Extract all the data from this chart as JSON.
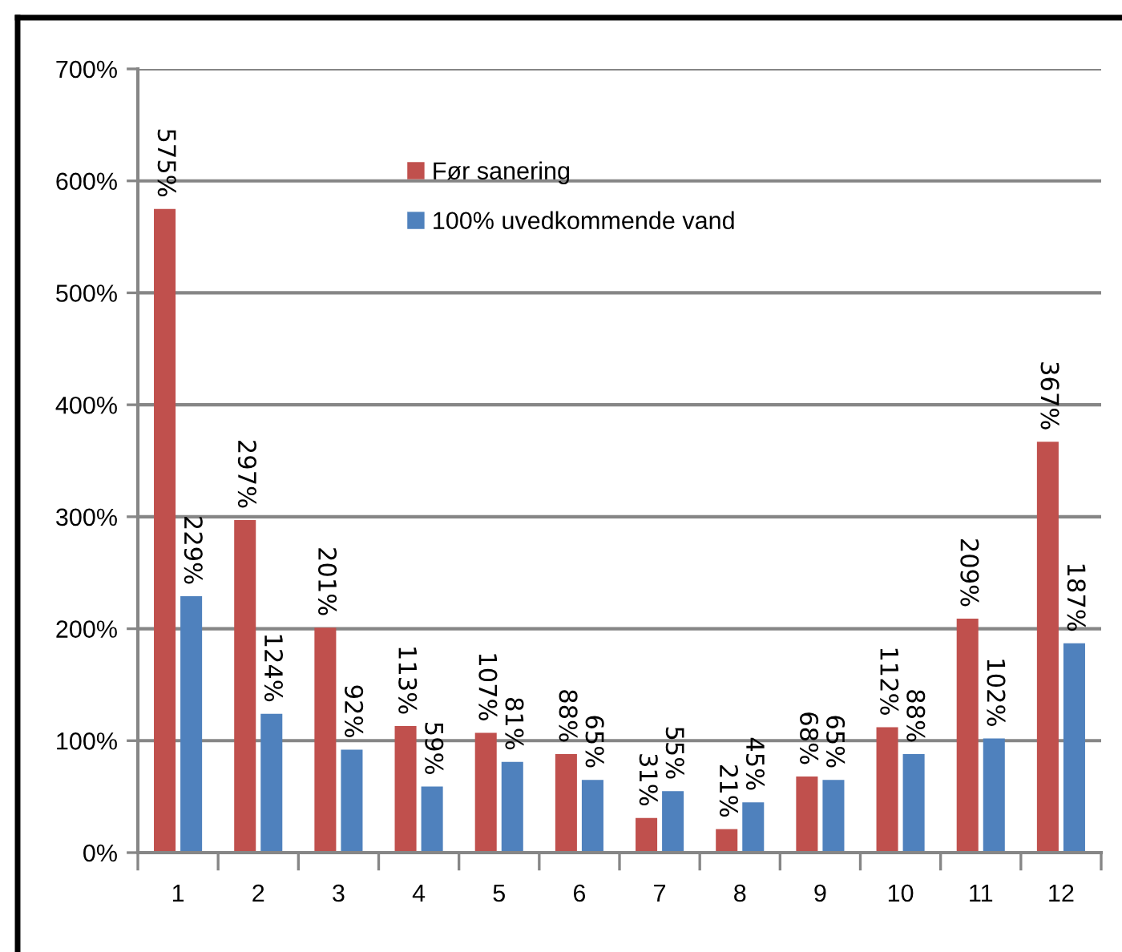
{
  "chart_data": {
    "type": "bar",
    "categories": [
      "1",
      "2",
      "3",
      "4",
      "5",
      "6",
      "7",
      "8",
      "9",
      "10",
      "11",
      "12"
    ],
    "series": [
      {
        "name": "Før sanering",
        "color": "#c0504d",
        "values": [
          575,
          297,
          201,
          113,
          107,
          88,
          31,
          21,
          68,
          112,
          209,
          367
        ],
        "value_labels": [
          "575%",
          "297%",
          "201%",
          "113%",
          "107%",
          "88%",
          "31%",
          "21%",
          "68%",
          "112%",
          "209%",
          "367%"
        ]
      },
      {
        "name": "100% uvedkommende vand",
        "color": "#4f81bd",
        "values": [
          229,
          124,
          92,
          59,
          81,
          65,
          55,
          45,
          65,
          88,
          102,
          187
        ],
        "value_labels": [
          "229%",
          "124%",
          "92%",
          "59%",
          "81%",
          "65%",
          "55%",
          "45%",
          "65%",
          "88%",
          "102%",
          "187%"
        ]
      }
    ],
    "ylim": [
      0,
      700
    ],
    "yticks": [
      {
        "value": 0,
        "label": "0%"
      },
      {
        "value": 100,
        "label": "100%"
      },
      {
        "value": 200,
        "label": "200%"
      },
      {
        "value": 300,
        "label": "300%"
      },
      {
        "value": 400,
        "label": "400%"
      },
      {
        "value": 500,
        "label": "500%"
      },
      {
        "value": 600,
        "label": "600%"
      },
      {
        "value": 700,
        "label": "700%"
      }
    ],
    "grid": "y",
    "legend": "top"
  }
}
